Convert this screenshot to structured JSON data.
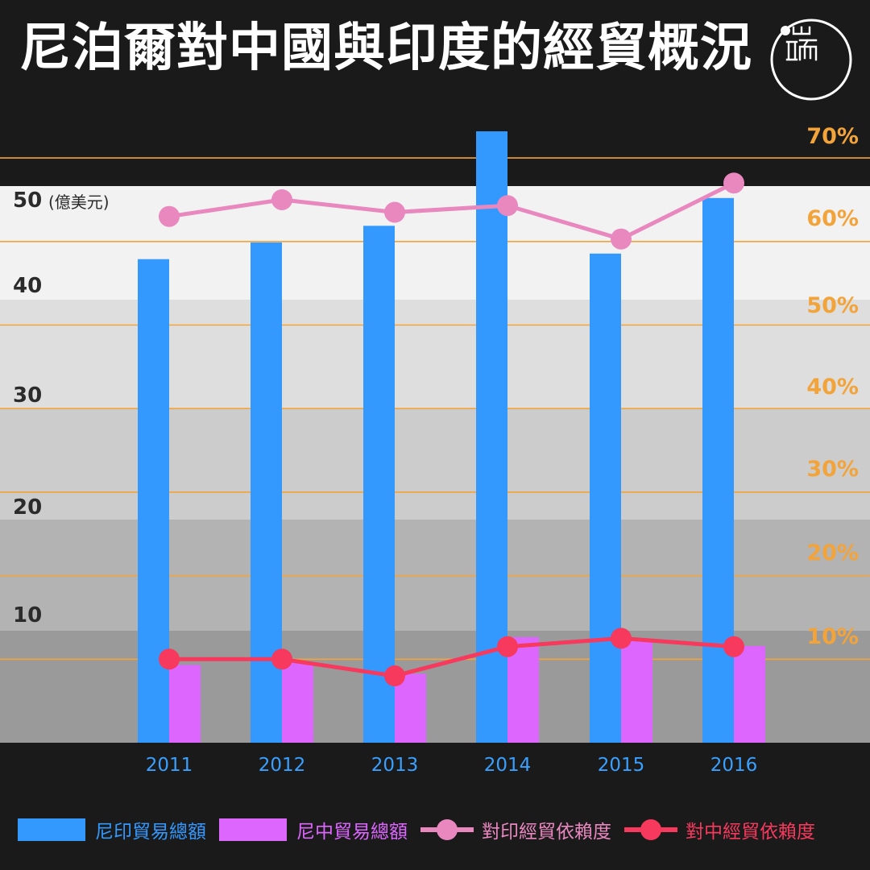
{
  "title": "尼泊爾對中國與印度的經貿概況",
  "logo": {
    "name": "brand-logo",
    "text": "端"
  },
  "colors": {
    "india_trade": "#3399ff",
    "china_trade": "#dd66ff",
    "india_dependence": "#e987bf",
    "china_dependence": "#f7395d",
    "grid": "#f2a33a",
    "right_axis": "#f2a33a",
    "x_axis": "#3aa0ff"
  },
  "chart_data": {
    "type": "bar",
    "title": "尼泊爾對中國與印度的經貿概況",
    "categories": [
      "2011",
      "2012",
      "2013",
      "2014",
      "2015",
      "2016"
    ],
    "y_left": {
      "unit": "(億美元)",
      "ticks": [
        "10",
        "20",
        "30",
        "40",
        "50"
      ],
      "range": [
        0,
        55
      ]
    },
    "y_right": {
      "ticks": [
        "10%",
        "20%",
        "30%",
        "40%",
        "50%",
        "60%",
        "70%"
      ],
      "range": [
        0,
        70
      ]
    },
    "series": [
      {
        "name": "尼印貿易總額",
        "type": "bar",
        "axis": "left",
        "values": [
          43.5,
          45,
          46.5,
          55,
          44,
          49
        ]
      },
      {
        "name": "尼中貿易總額",
        "type": "bar",
        "axis": "left",
        "values": [
          7,
          7.2,
          6.2,
          9.5,
          9.3,
          8.7
        ]
      },
      {
        "name": "對印經貿依賴度",
        "type": "line",
        "axis": "right",
        "values": [
          63,
          65,
          63.5,
          64.3,
          60.3,
          67
        ]
      },
      {
        "name": "對中經貿依賴度",
        "type": "line",
        "axis": "right",
        "values": [
          10,
          10,
          8,
          11.5,
          12.5,
          11.5
        ]
      }
    ],
    "legend_position": "bottom"
  }
}
